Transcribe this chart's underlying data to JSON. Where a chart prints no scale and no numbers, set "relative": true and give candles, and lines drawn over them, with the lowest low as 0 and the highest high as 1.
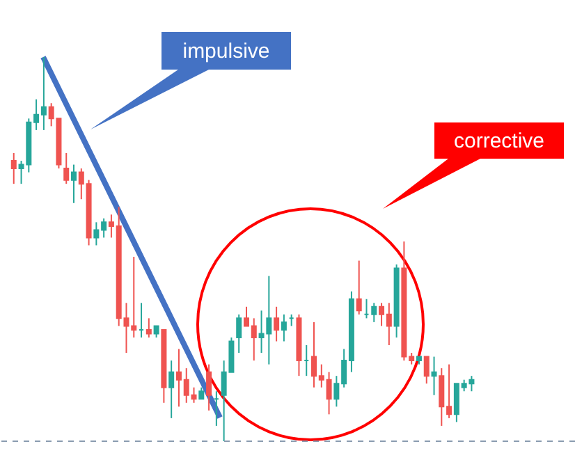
{
  "chart_data": {
    "type": "candlestick",
    "relative": true,
    "categories": [
      null,
      null,
      null,
      null,
      null,
      null,
      null,
      null,
      null,
      null,
      null,
      null,
      null,
      null,
      null,
      null,
      null,
      null,
      null,
      null,
      null,
      null,
      null,
      null,
      null,
      null,
      null,
      null,
      null,
      null,
      null,
      null,
      null,
      null,
      null,
      null,
      null,
      null,
      null,
      null,
      null,
      null,
      null,
      null,
      null,
      null,
      null,
      null,
      null,
      null,
      null,
      null,
      null,
      null,
      null,
      null,
      null,
      null,
      null,
      null,
      null,
      null
    ],
    "ohlc": [
      [
        0.73,
        0.75,
        0.67,
        0.71
      ],
      [
        0.71,
        0.73,
        0.67,
        0.72
      ],
      [
        0.72,
        0.84,
        0.7,
        0.83
      ],
      [
        0.83,
        0.89,
        0.81,
        0.85
      ],
      [
        0.85,
        1,
        0.81,
        0.87
      ],
      [
        0.87,
        0.88,
        0.82,
        0.84
      ],
      [
        0.84,
        0.84,
        0.71,
        0.72
      ],
      [
        0.71,
        0.75,
        0.67,
        0.68
      ],
      [
        0.68,
        0.72,
        0.62,
        0.7
      ],
      [
        0.7,
        0.71,
        0.63,
        0.67
      ],
      [
        0.67,
        0.68,
        0.51,
        0.53
      ],
      [
        0.53,
        0.57,
        0.51,
        0.55
      ],
      [
        0.55,
        0.58,
        0.53,
        0.57
      ],
      [
        0.57,
        0.59,
        0.53,
        0.56
      ],
      [
        0.56,
        0.61,
        0.3,
        0.32
      ],
      [
        0.32,
        0.36,
        0.23,
        0.3
      ],
      [
        0.3,
        0.48,
        0.27,
        0.29
      ],
      [
        0.29,
        0.36,
        0.27,
        0.29
      ],
      [
        0.29,
        0.32,
        0.27,
        0.28
      ],
      [
        0.28,
        0.3,
        0.27,
        0.3
      ],
      [
        0.29,
        0.29,
        0.1,
        0.14
      ],
      [
        0.14,
        0.21,
        0.06,
        0.18
      ],
      [
        0.18,
        0.24,
        0.09,
        0.16
      ],
      [
        0.16,
        0.19,
        0.1,
        0.12
      ],
      [
        0.12,
        0.14,
        0.1,
        0.11
      ],
      [
        0.11,
        0.14,
        0.11,
        0.13
      ],
      [
        0.18,
        0.2,
        0.08,
        0.12
      ],
      [
        0.11,
        0.13,
        0.04,
        0.11
      ],
      [
        0.12,
        0.21,
        0,
        0.18
      ],
      [
        0.18,
        0.27,
        0.18,
        0.26
      ],
      [
        0.27,
        0.33,
        0.23,
        0.32
      ],
      [
        0.32,
        0.35,
        0.3,
        0.3
      ],
      [
        0.3,
        0.32,
        0.21,
        0.27
      ],
      [
        0.27,
        0.34,
        0.23,
        0.28
      ],
      [
        0.28,
        0.43,
        0.2,
        0.32
      ],
      [
        0.32,
        0.35,
        0.26,
        0.29
      ],
      [
        0.29,
        0.33,
        0.26,
        0.31
      ],
      [
        0.32,
        0.33,
        0.3,
        0.32
      ],
      [
        0.32,
        0.33,
        0.17,
        0.21
      ],
      [
        0.21,
        0.25,
        0.17,
        0.21
      ],
      [
        0.22,
        0.31,
        0.14,
        0.17
      ],
      [
        0.17,
        0.2,
        0.14,
        0.16
      ],
      [
        0.16,
        0.18,
        0.07,
        0.11
      ],
      [
        0.11,
        0.17,
        0.09,
        0.15
      ],
      [
        0.15,
        0.24,
        0.14,
        0.21
      ],
      [
        0.21,
        0.39,
        0.18,
        0.37
      ],
      [
        0.37,
        0.47,
        0.33,
        0.34
      ],
      [
        0.33,
        0.37,
        0.32,
        0.33
      ],
      [
        0.33,
        0.36,
        0.31,
        0.35
      ],
      [
        0.35,
        0.36,
        0.3,
        0.33
      ],
      [
        0.33,
        0.36,
        0.25,
        0.3
      ],
      [
        0.3,
        0.46,
        0.27,
        0.45
      ],
      [
        0.45,
        0.52,
        0.21,
        0.22
      ],
      [
        0.22,
        0.23,
        0.2,
        0.21
      ],
      [
        0.21,
        0.22,
        0.2,
        0.22
      ],
      [
        0.22,
        0.22,
        0.15,
        0.17
      ],
      [
        0.17,
        0.22,
        0.12,
        0.18
      ],
      [
        0.17,
        0.19,
        0.04,
        0.09
      ],
      [
        0.09,
        0.2,
        0.06,
        0.07
      ],
      [
        0.07,
        0.15,
        0.05,
        0.15
      ],
      [
        0.14,
        0.16,
        0.13,
        0.15
      ],
      [
        0.15,
        0.17,
        0.13,
        0.16
      ]
    ],
    "ref_lines": [
      {
        "axis": "y",
        "value": 0,
        "color": "#8a9bb0",
        "line_style": "dashed"
      }
    ],
    "annotations": [
      "impulsive",
      "corrective"
    ]
  }
}
